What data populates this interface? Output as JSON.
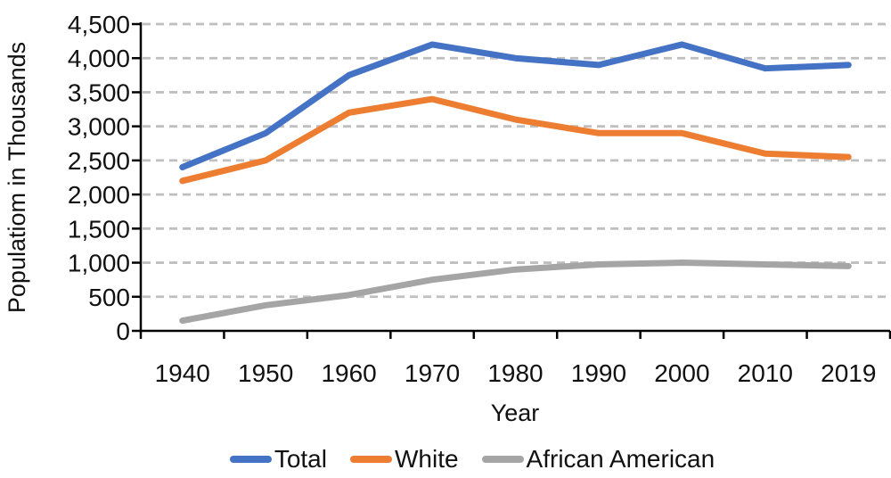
{
  "chart_data": {
    "type": "line",
    "title": "",
    "xlabel": "Year",
    "ylabel": "Populatiom in Thousands",
    "categories": [
      "1940",
      "1950",
      "1960",
      "1970",
      "1980",
      "1990",
      "2000",
      "2010",
      "2019"
    ],
    "series": [
      {
        "name": "Total",
        "color": "#4472C4",
        "values": [
          2400,
          2900,
          3750,
          4200,
          4000,
          3900,
          4200,
          3850,
          3900
        ]
      },
      {
        "name": "White",
        "color": "#ED7D31",
        "values": [
          2200,
          2500,
          3200,
          3400,
          3100,
          2900,
          2900,
          2600,
          2550
        ]
      },
      {
        "name": "African American",
        "color": "#A5A5A5",
        "values": [
          150,
          375,
          525,
          750,
          900,
          975,
          1000,
          975,
          950
        ]
      }
    ],
    "ylim": [
      0,
      4500
    ],
    "ytick_step": 500,
    "yticks": [
      "0",
      "500",
      "1,000",
      "1,500",
      "2,000",
      "2,500",
      "3,000",
      "3,500",
      "4,000",
      "4,500"
    ],
    "grid": "horizontal-dashed",
    "gridline_color": "#BFBFBF",
    "axis_color": "#000000",
    "legend_position": "bottom"
  }
}
